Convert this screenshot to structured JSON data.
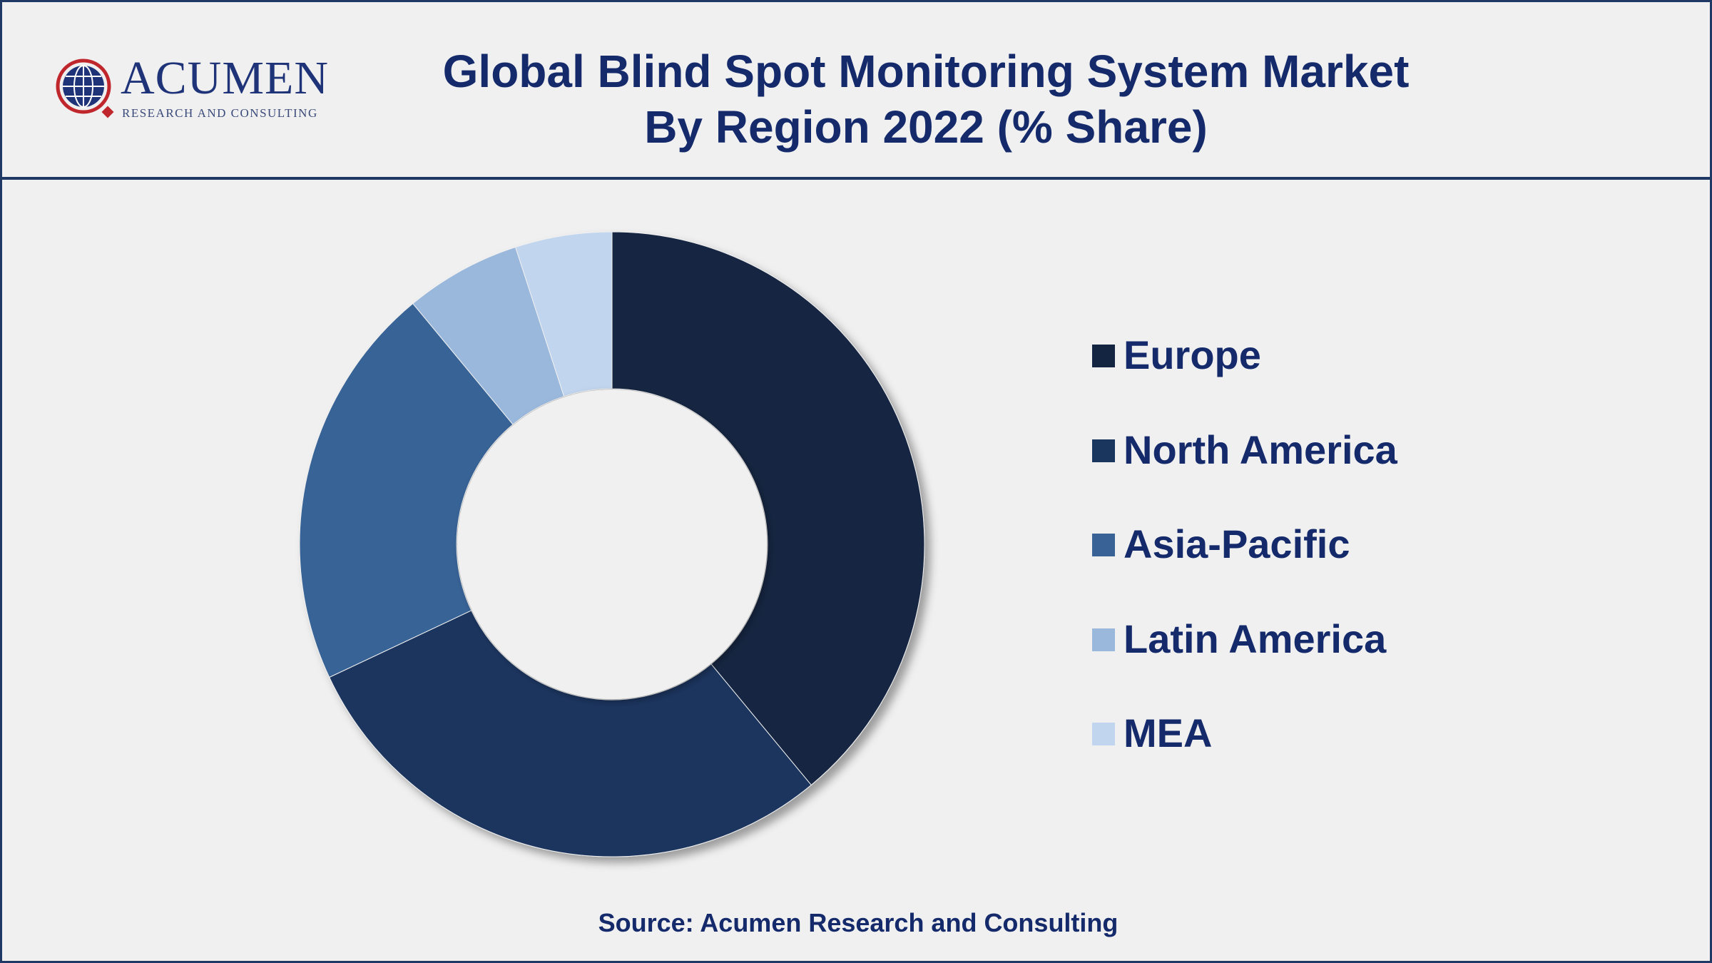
{
  "header": {
    "logo_text": "ACUMEN",
    "logo_subtext": "RESEARCH AND CONSULTING",
    "title_line1": "Global Blind Spot Monitoring System Market",
    "title_line2": "By Region 2022 (% Share)"
  },
  "chart_data": {
    "type": "pie",
    "variant": "donut",
    "categories": [
      "Europe",
      "North America",
      "Asia-Pacific",
      "Latin America",
      "MEA"
    ],
    "values": [
      39,
      29,
      21,
      6,
      5
    ],
    "unit": "%",
    "colors": [
      "#142542",
      "#1b365e",
      "#396396",
      "#9ab8dc",
      "#c1d5ee"
    ],
    "legend_position": "right"
  },
  "footer": {
    "source": "Source: Acumen Research and Consulting"
  }
}
